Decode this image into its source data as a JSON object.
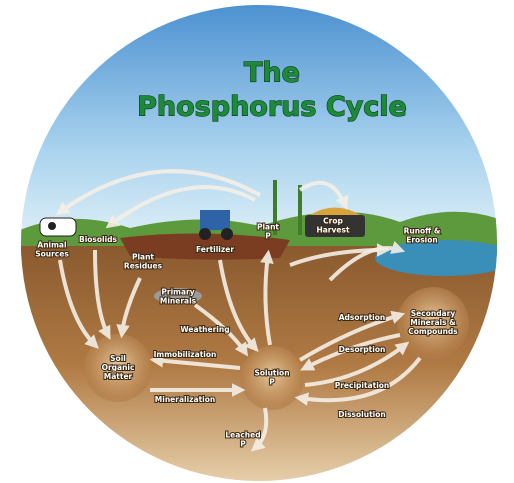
{
  "header": {
    "title": [
      "The",
      "Phosphorus Cycle"
    ]
  },
  "nodes": [
    {
      "label": [
        "Animal",
        "Sources"
      ]
    },
    {
      "label": [
        "Biosolids"
      ]
    },
    {
      "label": [
        "Plant",
        "Residues"
      ]
    },
    {
      "label": [
        "Fertilizer"
      ]
    },
    {
      "label": [
        "Plant",
        "P"
      ]
    },
    {
      "label": [
        "Crop",
        "Harvest"
      ]
    },
    {
      "label": [
        "Runoff &",
        "Erosion"
      ]
    },
    {
      "label": [
        "Primary",
        "Minerals"
      ]
    },
    {
      "label": [
        "Weathering"
      ]
    },
    {
      "label": [
        "Soil",
        "Organic",
        "Matter"
      ]
    },
    {
      "label": [
        "Immobilization"
      ]
    },
    {
      "label": [
        "Mineralization"
      ]
    },
    {
      "label": [
        "Solution",
        "P"
      ]
    },
    {
      "label": [
        "Adsorption"
      ]
    },
    {
      "label": [
        "Desorption"
      ]
    },
    {
      "label": [
        "Precipitation"
      ]
    },
    {
      "label": [
        "Dissolution"
      ]
    },
    {
      "label": [
        "Secondary",
        "Minerals &",
        "Compounds"
      ]
    },
    {
      "label": [
        "Leached",
        "P"
      ]
    }
  ]
}
